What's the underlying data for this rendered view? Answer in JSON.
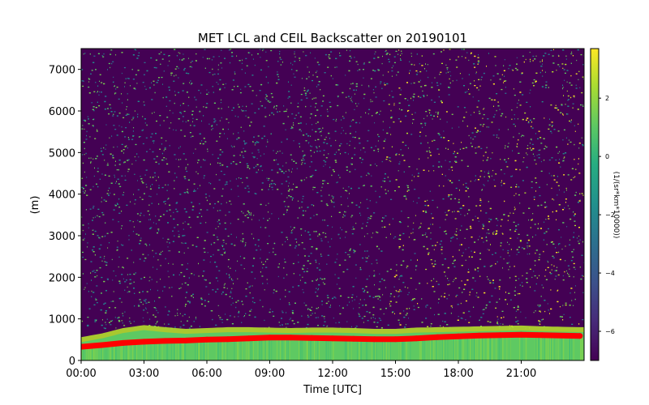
{
  "chart_data": {
    "type": "heatmap",
    "title": "MET LCL and CEIL Backscatter on 20190101",
    "xlabel": "Time [UTC]",
    "ylabel": "(m)",
    "colorbar_label": "(1/(sr*km*10000))",
    "xlim": [
      0,
      24
    ],
    "ylim": [
      0,
      7500
    ],
    "x_ticks": [
      {
        "value": 0,
        "label": "00:00"
      },
      {
        "value": 3,
        "label": "03:00"
      },
      {
        "value": 6,
        "label": "06:00"
      },
      {
        "value": 9,
        "label": "09:00"
      },
      {
        "value": 12,
        "label": "12:00"
      },
      {
        "value": 15,
        "label": "15:00"
      },
      {
        "value": 18,
        "label": "18:00"
      },
      {
        "value": 21,
        "label": "21:00"
      }
    ],
    "y_ticks": [
      {
        "value": 0,
        "label": "0"
      },
      {
        "value": 1000,
        "label": "1000"
      },
      {
        "value": 2000,
        "label": "2000"
      },
      {
        "value": 3000,
        "label": "3000"
      },
      {
        "value": 4000,
        "label": "4000"
      },
      {
        "value": 5000,
        "label": "5000"
      },
      {
        "value": 6000,
        "label": "6000"
      },
      {
        "value": 7000,
        "label": "7000"
      }
    ],
    "colorbar": {
      "range": [
        -7.0,
        3.7
      ],
      "colormap": "viridis",
      "ticks": [
        {
          "value": 2,
          "label": "2"
        },
        {
          "value": 0,
          "label": "0"
        },
        {
          "value": -2,
          "label": "−2"
        },
        {
          "value": -4,
          "label": "−4"
        },
        {
          "value": -6,
          "label": "−6"
        }
      ]
    },
    "lcl_series": {
      "color": "#ff0000",
      "x": [
        0,
        1,
        2,
        3,
        4,
        5,
        6,
        7,
        8,
        9,
        10,
        11,
        12,
        13,
        14,
        15,
        16,
        17,
        18,
        19,
        20,
        21,
        22,
        23.8
      ],
      "y": [
        330,
        370,
        420,
        450,
        470,
        480,
        500,
        510,
        530,
        550,
        550,
        540,
        530,
        520,
        510,
        510,
        530,
        560,
        580,
        600,
        610,
        620,
        610,
        590
      ]
    },
    "cloud_top": {
      "x": [
        0,
        1,
        2,
        3,
        4,
        5,
        6,
        7,
        8,
        9,
        10,
        11,
        12,
        13,
        14,
        15,
        16,
        17,
        18,
        19,
        20,
        21,
        22,
        23.8
      ],
      "y": [
        560,
        650,
        780,
        850,
        800,
        760,
        780,
        800,
        800,
        790,
        780,
        790,
        790,
        780,
        760,
        760,
        790,
        800,
        810,
        820,
        830,
        840,
        820,
        800
      ]
    },
    "grid": false
  }
}
